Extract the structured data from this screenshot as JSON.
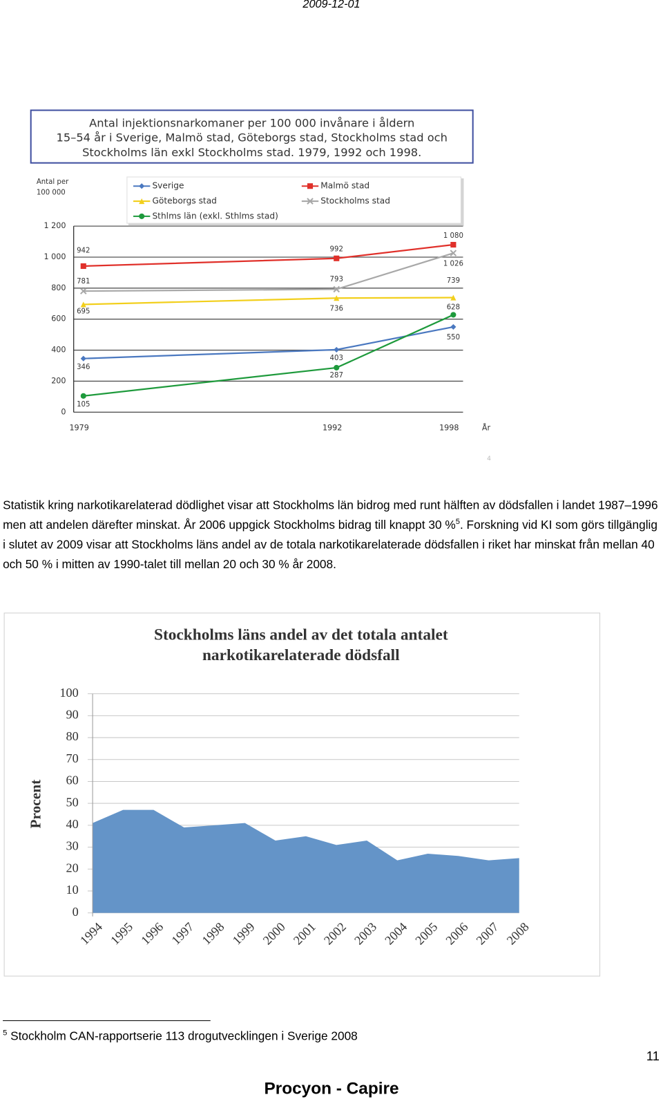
{
  "header": {
    "date": "2009-12-01"
  },
  "chart_data": [
    {
      "type": "line",
      "title_lines": [
        "Antal injektionsnarkomaner per 100 000 invånare i åldern",
        "15–54 år i Sverige, Malmö stad, Göteborgs stad, Stockholms stad och",
        "Stockholms län exkl Stockholms stad. 1979, 1992 och 1998."
      ],
      "y_label_lines": [
        "Antal per",
        "100 000"
      ],
      "x_label": "År",
      "annotation": "4",
      "x": [
        1979,
        1992,
        1998
      ],
      "xlim": [
        1978.5,
        1998.5
      ],
      "xticks": [
        1979,
        1992,
        1998
      ],
      "ylim": [
        0,
        1200
      ],
      "yticks": [
        0,
        200,
        400,
        600,
        800,
        {
          "value": 1000,
          "label": "1 000"
        },
        {
          "value": 1200,
          "label": "1 200"
        }
      ],
      "grid": true,
      "series": [
        {
          "name": "Sverige",
          "color": "#4a78c0",
          "marker": "diamond",
          "values": [
            346,
            403,
            550
          ]
        },
        {
          "name": "Malmö stad",
          "color": "#e0302a",
          "marker": "square",
          "values": [
            942,
            992,
            1080
          ],
          "value_labels": [
            "942",
            "992",
            "1 080"
          ]
        },
        {
          "name": "Göteborgs stad",
          "color": "#f2cf1c",
          "marker": "triangle",
          "values": [
            695,
            736,
            739
          ]
        },
        {
          "name": "Stockholms stad",
          "color": "#a8a8a8",
          "marker": "cross",
          "values": [
            781,
            793,
            1026
          ],
          "value_labels": [
            "781",
            "793",
            "1 026"
          ]
        },
        {
          "name": "Sthlms län (exkl. Sthlms stad)",
          "color": "#1e9a3c",
          "marker": "circle",
          "values": [
            105,
            287,
            628
          ]
        }
      ]
    },
    {
      "type": "area",
      "title_lines": [
        "Stockholms läns andel av det totala antalet",
        "narkotikarelaterade dödsfall"
      ],
      "y_label": "Procent",
      "categories": [
        "1994",
        "1995",
        "1996",
        "1997",
        "1998",
        "1999",
        "2000",
        "2001",
        "2002",
        "2003",
        "2004",
        "2005",
        "2006",
        "2007",
        "2008"
      ],
      "values": [
        41,
        47,
        47,
        39,
        40,
        41,
        33,
        35,
        31,
        33,
        24,
        27,
        26,
        24,
        25
      ],
      "color": "#6494c8",
      "ylim": [
        0,
        100
      ],
      "yticks": [
        0,
        10,
        20,
        30,
        40,
        50,
        60,
        70,
        80,
        90,
        100
      ],
      "grid": true
    }
  ],
  "body": {
    "paragraph": {
      "text_1": "Statistik kring narkotikarelaterad dödlighet visar att Stockholms län bidrog med runt hälften av dödsfallen i landet 1987–1996 men att andelen därefter minskat. År 2006 uppgick Stockholms bidrag till knappt 30 %",
      "footnote_ref": "5",
      "text_2": ". Forskning vid KI som görs tillgänglig i slutet av 2009 visar att Stockholms läns andel av de totala narkotikarelaterade dödsfallen i riket har minskat från mellan 40 och 50 % i mitten av 1990-talet till mellan 20 och 30 % år 2008."
    }
  },
  "footnote": {
    "number": "5",
    "text": "Stockholm CAN-rapportserie 113 drogutvecklingen i Sverige 2008"
  },
  "page_number": "11",
  "footer": "Procyon - Capire"
}
